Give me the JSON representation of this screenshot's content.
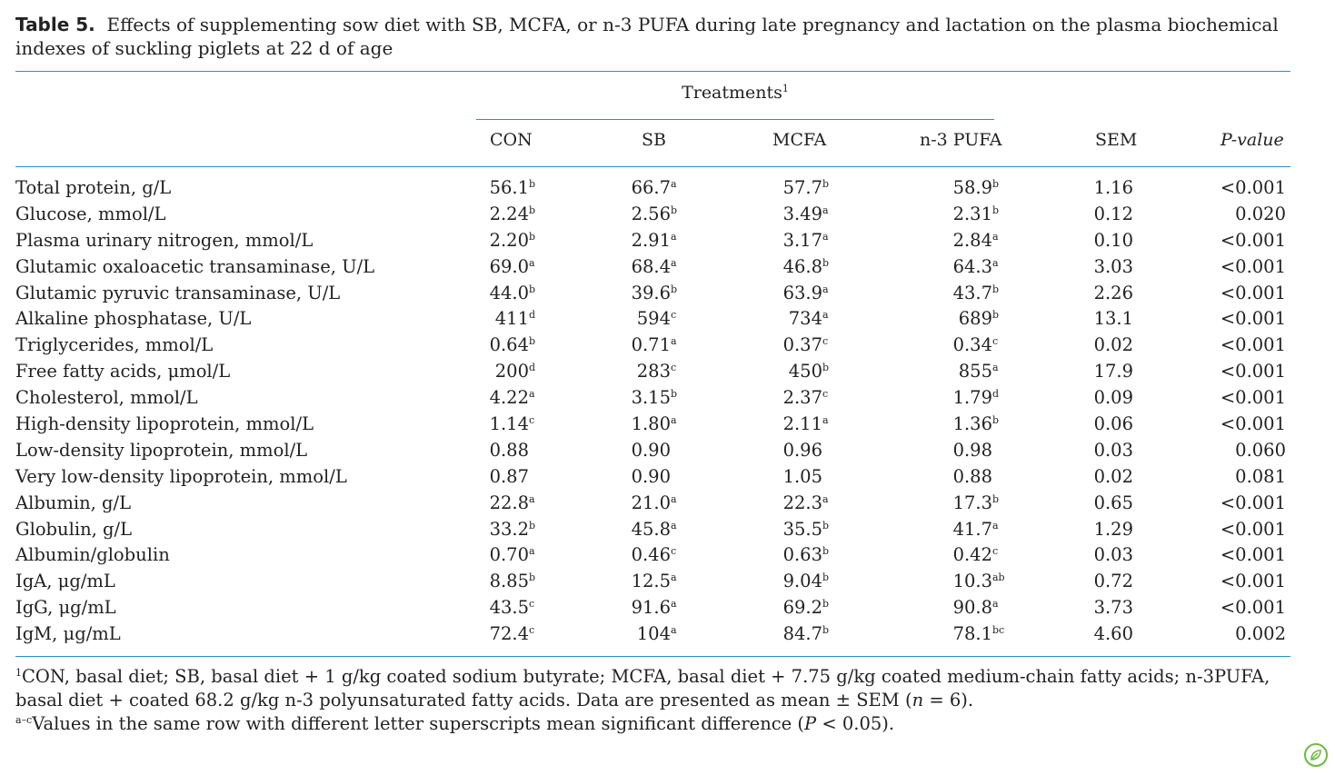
{
  "caption": {
    "label": "Table 5.",
    "text": "Effects of supplementing sow diet with SB, MCFA, or n-3 PUFA during late pregnancy and lactation on the plasma biochemical indexes of suckling piglets at 22 d of age"
  },
  "header": {
    "group_label": "Treatments",
    "group_footnote": "1",
    "columns": [
      "CON",
      "SB",
      "MCFA",
      "n-3 PUFA",
      "SEM",
      "P-value"
    ]
  },
  "rows": [
    {
      "label": "Total protein, g/L",
      "cells": [
        [
          "56.1",
          "b"
        ],
        [
          "66.7",
          "a"
        ],
        [
          "57.7",
          "b"
        ],
        [
          "58.9",
          "b"
        ]
      ],
      "sem": "1.16",
      "p": "<0.001"
    },
    {
      "label": "Glucose, mmol/L",
      "cells": [
        [
          "2.24",
          "b"
        ],
        [
          "2.56",
          "b"
        ],
        [
          "3.49",
          "a"
        ],
        [
          "2.31",
          "b"
        ]
      ],
      "sem": "0.12",
      "p": "0.020"
    },
    {
      "label": "Plasma urinary nitrogen, mmol/L",
      "cells": [
        [
          "2.20",
          "b"
        ],
        [
          "2.91",
          "a"
        ],
        [
          "3.17",
          "a"
        ],
        [
          "2.84",
          "a"
        ]
      ],
      "sem": "0.10",
      "p": "<0.001"
    },
    {
      "label": "Glutamic oxaloacetic transaminase, U/L",
      "cells": [
        [
          "69.0",
          "a"
        ],
        [
          "68.4",
          "a"
        ],
        [
          "46.8",
          "b"
        ],
        [
          "64.3",
          "a"
        ]
      ],
      "sem": "3.03",
      "p": "<0.001"
    },
    {
      "label": "Glutamic pyruvic transaminase, U/L",
      "cells": [
        [
          "44.0",
          "b"
        ],
        [
          "39.6",
          "b"
        ],
        [
          "63.9",
          "a"
        ],
        [
          "43.7",
          "b"
        ]
      ],
      "sem": "2.26",
      "p": "<0.001"
    },
    {
      "label": "Alkaline phosphatase, U/L",
      "cells": [
        [
          "411",
          "d"
        ],
        [
          "594",
          "c"
        ],
        [
          "734",
          "a"
        ],
        [
          "689",
          "b"
        ]
      ],
      "sem": "13.1",
      "p": "<0.001"
    },
    {
      "label": "Triglycerides, mmol/L",
      "cells": [
        [
          "0.64",
          "b"
        ],
        [
          "0.71",
          "a"
        ],
        [
          "0.37",
          "c"
        ],
        [
          "0.34",
          "c"
        ]
      ],
      "sem": "0.02",
      "p": "<0.001"
    },
    {
      "label": "Free fatty acids, μmol/L",
      "cells": [
        [
          "200",
          "d"
        ],
        [
          "283",
          "c"
        ],
        [
          "450",
          "b"
        ],
        [
          "855",
          "a"
        ]
      ],
      "sem": "17.9",
      "p": "<0.001"
    },
    {
      "label": "Cholesterol, mmol/L",
      "cells": [
        [
          "4.22",
          "a"
        ],
        [
          "3.15",
          "b"
        ],
        [
          "2.37",
          "c"
        ],
        [
          "1.79",
          "d"
        ]
      ],
      "sem": "0.09",
      "p": "<0.001"
    },
    {
      "label": "High-density lipoprotein, mmol/L",
      "cells": [
        [
          "1.14",
          "c"
        ],
        [
          "1.80",
          "a"
        ],
        [
          "2.11",
          "a"
        ],
        [
          "1.36",
          "b"
        ]
      ],
      "sem": "0.06",
      "p": "<0.001"
    },
    {
      "label": "Low-density lipoprotein, mmol/L",
      "cells": [
        [
          "0.88",
          ""
        ],
        [
          "0.90",
          ""
        ],
        [
          "0.96",
          ""
        ],
        [
          "0.98",
          ""
        ]
      ],
      "sem": "0.03",
      "p": "0.060"
    },
    {
      "label": "Very low-density lipoprotein, mmol/L",
      "cells": [
        [
          "0.87",
          ""
        ],
        [
          "0.90",
          ""
        ],
        [
          "1.05",
          ""
        ],
        [
          "0.88",
          ""
        ]
      ],
      "sem": "0.02",
      "p": "0.081"
    },
    {
      "label": "Albumin, g/L",
      "cells": [
        [
          "22.8",
          "a"
        ],
        [
          "21.0",
          "a"
        ],
        [
          "22.3",
          "a"
        ],
        [
          "17.3",
          "b"
        ]
      ],
      "sem": "0.65",
      "p": "<0.001"
    },
    {
      "label": "Globulin, g/L",
      "cells": [
        [
          "33.2",
          "b"
        ],
        [
          "45.8",
          "a"
        ],
        [
          "35.5",
          "b"
        ],
        [
          "41.7",
          "a"
        ]
      ],
      "sem": "1.29",
      "p": "<0.001"
    },
    {
      "label": "Albumin/globulin",
      "cells": [
        [
          "0.70",
          "a"
        ],
        [
          "0.46",
          "c"
        ],
        [
          "0.63",
          "b"
        ],
        [
          "0.42",
          "c"
        ]
      ],
      "sem": "0.03",
      "p": "<0.001"
    },
    {
      "label": "IgA, μg/mL",
      "cells": [
        [
          "8.85",
          "b"
        ],
        [
          "12.5",
          "a"
        ],
        [
          "9.04",
          "b"
        ],
        [
          "10.3",
          "ab"
        ]
      ],
      "sem": "0.72",
      "p": "<0.001"
    },
    {
      "label": "IgG, μg/mL",
      "cells": [
        [
          "43.5",
          "c"
        ],
        [
          "91.6",
          "a"
        ],
        [
          "69.2",
          "b"
        ],
        [
          "90.8",
          "a"
        ]
      ],
      "sem": "3.73",
      "p": "<0.001"
    },
    {
      "label": "IgM, μg/mL",
      "cells": [
        [
          "72.4",
          "c"
        ],
        [
          "104",
          "a"
        ],
        [
          "84.7",
          "b"
        ],
        [
          "78.1",
          "bc"
        ]
      ],
      "sem": "4.60",
      "p": "0.002"
    }
  ],
  "footnotes": {
    "note1_mark": "1",
    "note1_text": "CON, basal diet; SB, basal diet + 1 g/kg coated sodium butyrate; MCFA, basal diet + 7.75 g/kg coated medium-chain fatty acids; n-3PUFA, basal diet + coated 68.2 g/kg n-3 polyunsaturated fatty acids. Data are presented as mean ± SEM (",
    "note1_n": "n",
    "note1_tail": " = 6).",
    "note2_mark": "a–c",
    "note2_text": "Values in the same row with different letter superscripts mean significant difference (",
    "note2_p": "P",
    "note2_tail": " < 0.05)."
  },
  "badge_icon": "leaf-badge-icon",
  "colors": {
    "rule": "#2b8fc9",
    "badge": "#6dbb3c"
  }
}
